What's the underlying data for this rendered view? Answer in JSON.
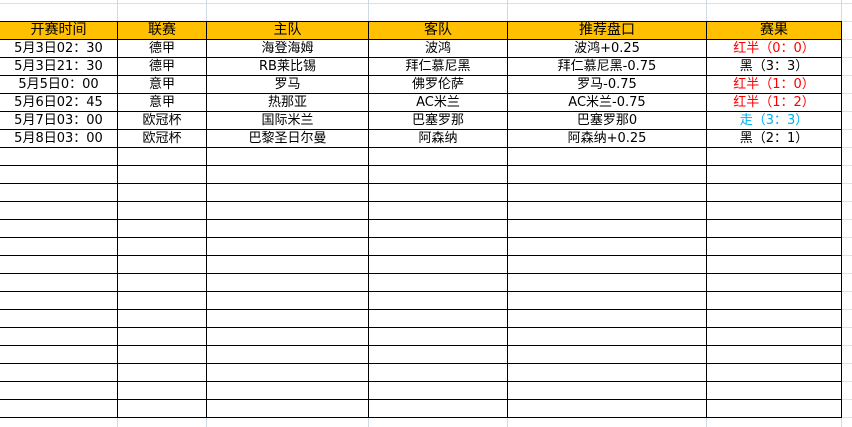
{
  "sheet": {
    "headers": [
      "开赛时间",
      "联赛",
      "主队",
      "客队",
      "推荐盘口",
      "赛果"
    ],
    "rows": [
      {
        "time": "5月3日02：30",
        "league": "德甲",
        "home": "海登海姆",
        "away": "波鸿",
        "pick": "波鸿+0.25",
        "result": "红半（0：0）",
        "result_color": "red"
      },
      {
        "time": "5月3日21：30",
        "league": "德甲",
        "home": "RB莱比锡",
        "away": "拜仁慕尼黑",
        "pick": "拜仁慕尼黑-0.75",
        "result": "黑（3：3）",
        "result_color": "black"
      },
      {
        "time": "5月5日0：00",
        "league": "意甲",
        "home": "罗马",
        "away": "佛罗伦萨",
        "pick": "罗马-0.75",
        "result": "红半（1：0）",
        "result_color": "red"
      },
      {
        "time": "5月6日02：45",
        "league": "意甲",
        "home": "热那亚",
        "away": "AC米兰",
        "pick": "AC米兰-0.75",
        "result": "红半（1：2）",
        "result_color": "red"
      },
      {
        "time": "5月7日03：00",
        "league": "欧冠杯",
        "home": "国际米兰",
        "away": "巴塞罗那",
        "pick": "巴塞罗那0",
        "result": "走（3：3）",
        "result_color": "blue"
      },
      {
        "time": "5月8日03：00",
        "league": "欧冠杯",
        "home": "巴黎圣日尔曼",
        "away": "阿森纳",
        "pick": "阿森纳+0.25",
        "result": "黑（2：1）",
        "result_color": "black"
      }
    ],
    "empty_rows": 15,
    "colors": {
      "header_bg": "#ffc000",
      "red": "#ff0000",
      "blue": "#00b0f0",
      "black": "#000000"
    }
  }
}
